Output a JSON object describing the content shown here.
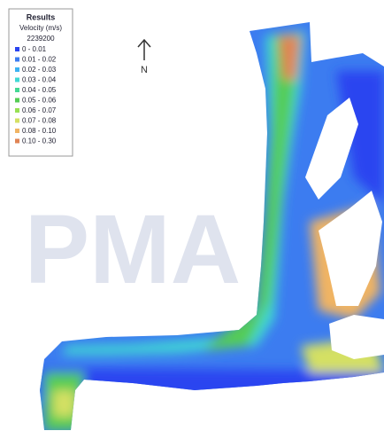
{
  "legend": {
    "title": "Results",
    "subtitle": "Velocity (m/s)",
    "id": "2239200",
    "items": [
      {
        "label": "0 - 0.01",
        "color": "#2a44f0"
      },
      {
        "label": "0.01 - 0.02",
        "color": "#3c7cf0"
      },
      {
        "label": "0.02 - 0.03",
        "color": "#3cb2f2"
      },
      {
        "label": "0.03 - 0.04",
        "color": "#40d8d4"
      },
      {
        "label": "0.04 - 0.05",
        "color": "#44d894"
      },
      {
        "label": "0.05 - 0.06",
        "color": "#54cc54"
      },
      {
        "label": "0.06 - 0.07",
        "color": "#98e054"
      },
      {
        "label": "0.07 - 0.08",
        "color": "#d4e064"
      },
      {
        "label": "0.08 - 0.10",
        "color": "#f0b464"
      },
      {
        "label": "0.10 - 0.30",
        "color": "#e08454"
      }
    ]
  },
  "north_label": "N",
  "watermark": "PMA"
}
